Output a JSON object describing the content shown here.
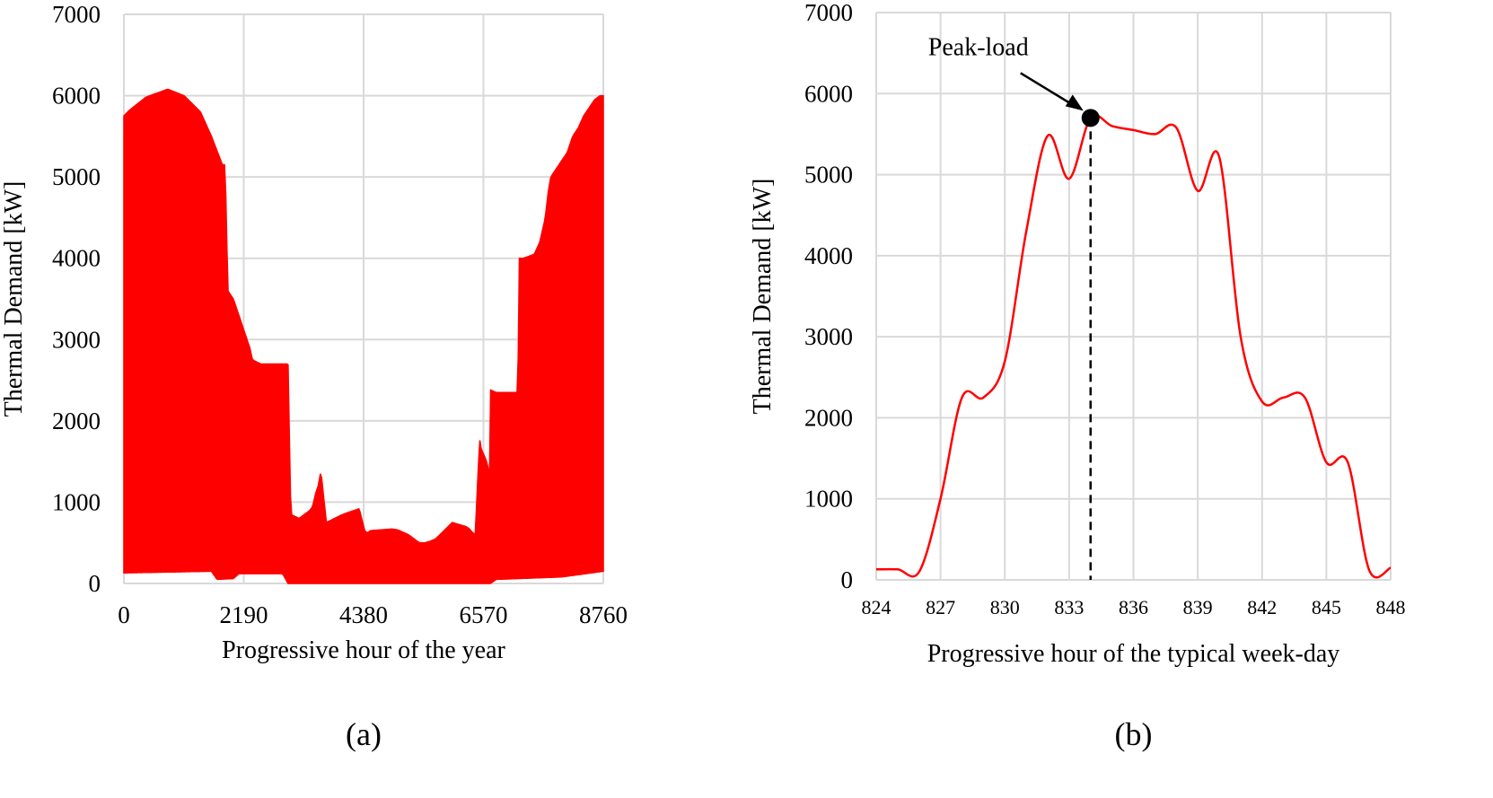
{
  "colors": {
    "series": "#ff0000",
    "grid": "#d9d9d9",
    "text": "#000000"
  },
  "chart_data": [
    {
      "type": "area",
      "panel_label": "(a)",
      "xlabel": "Progressive hour of the year",
      "ylabel": "Thermal Demand [kW]",
      "xlim": [
        0,
        8760
      ],
      "ylim": [
        0,
        7000
      ],
      "grid": true,
      "x_ticks": [
        0,
        2190,
        4380,
        6570,
        8760
      ],
      "y_ticks": [
        0,
        1000,
        2000,
        3000,
        4000,
        5000,
        6000,
        7000
      ],
      "series": [
        {
          "upper_envelope": {
            "x": [
              0,
              100,
              400,
              800,
              1100,
              1400,
              1600,
              1800,
              1850,
              1900,
              2000,
              2100,
              2200,
              2300,
              2350,
              2500,
              2700,
              2900,
              3000,
              3050,
              3200,
              3300,
              3400,
              3450,
              3500,
              3550,
              3600,
              3700,
              4000,
              4300,
              4400,
              4450,
              4500,
              4700,
              4900,
              5000,
              5200,
              5300,
              5400,
              5500,
              5600,
              5700,
              6000,
              6250,
              6300,
              6380,
              6420,
              6500,
              6530,
              6600,
              6650,
              6680,
              6700,
              6800,
              6880,
              7200,
              7220,
              7280,
              7300,
              7500,
              7600,
              7650,
              7700,
              7750,
              7800,
              7900,
              8000,
              8100,
              8200,
              8300,
              8400,
              8500,
              8600,
              8700,
              8760
            ],
            "y": [
              5750,
              5820,
              5980,
              6080,
              6000,
              5800,
              5500,
              5150,
              5150,
              3600,
              3500,
              3300,
              3100,
              2900,
              2750,
              2700,
              2700,
              2700,
              2700,
              850,
              800,
              850,
              900,
              950,
              1100,
              1200,
              1380,
              750,
              850,
              920,
              650,
              620,
              650,
              660,
              670,
              660,
              600,
              550,
              500,
              500,
              520,
              550,
              750,
              700,
              680,
              620,
              600,
              1780,
              1650,
              1550,
              1450,
              1300,
              2380,
              2350,
              2350,
              2350,
              4000,
              4000,
              4000,
              4050,
              4200,
              4350,
              4500,
              4800,
              5000,
              5100,
              5200,
              5300,
              5500,
              5600,
              5750,
              5850,
              5950,
              6000,
              6000
            ]
          },
          "lower_envelope": {
            "x": [
              0,
              1600,
              1700,
              2000,
              2100,
              2900,
              3000,
              4800,
              5000,
              5300,
              5400,
              5500,
              6700,
              6800,
              8000,
              8760
            ],
            "y": [
              130,
              150,
              50,
              60,
              120,
              120,
              0,
              0,
              0,
              0,
              0,
              0,
              0,
              50,
              80,
              150
            ]
          }
        }
      ]
    },
    {
      "type": "line",
      "panel_label": "(b)",
      "xlabel": "Progressive hour of the typical week-day",
      "ylabel": "Thermal Demand [kW]",
      "xlim": [
        824,
        848
      ],
      "ylim": [
        0,
        7000
      ],
      "grid": true,
      "x_ticks": [
        824,
        827,
        830,
        833,
        836,
        839,
        842,
        845,
        848
      ],
      "y_ticks": [
        0,
        1000,
        2000,
        3000,
        4000,
        5000,
        6000,
        7000
      ],
      "annotation": {
        "text": "Peak-load",
        "x": 834,
        "y": 5700
      },
      "series": [
        {
          "x": [
            824,
            825,
            826,
            827,
            828,
            829,
            830,
            831,
            832,
            833,
            834,
            835,
            836,
            837,
            838,
            839,
            840,
            841,
            842,
            843,
            844,
            845,
            846,
            847,
            848
          ],
          "y": [
            130,
            130,
            100,
            1000,
            2250,
            2250,
            2700,
            4300,
            5480,
            4950,
            5700,
            5600,
            5550,
            5500,
            5580,
            4800,
            5220,
            3000,
            2200,
            2250,
            2250,
            1450,
            1450,
            120,
            150
          ]
        }
      ]
    }
  ]
}
